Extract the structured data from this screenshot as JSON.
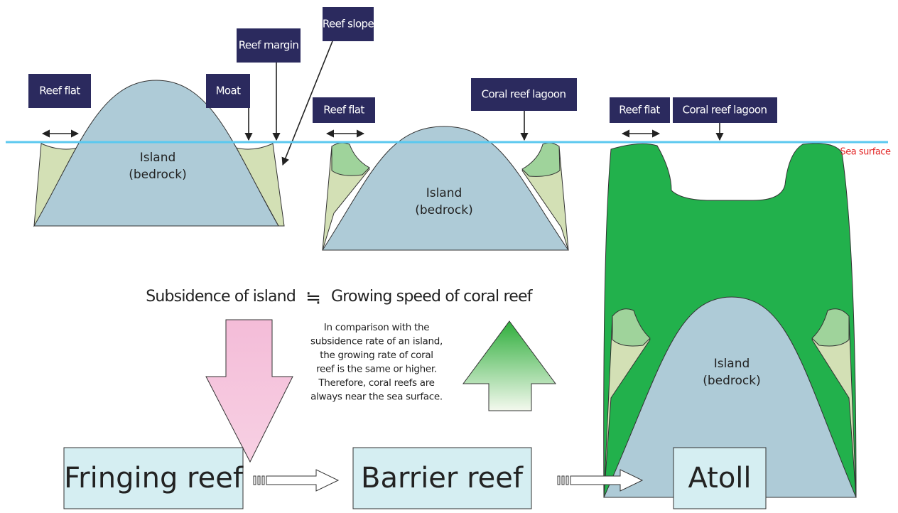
{
  "labels": [
    "Reef flat",
    "Moat",
    "Reef margin",
    "Reef slope",
    "Reef flat",
    "Coral reef lagoon",
    "Reef flat",
    "Coral reef lagoon"
  ],
  "sea_surface": "Sea surface",
  "islands": [
    [
      "Island",
      "(bedrock)"
    ],
    [
      "Island",
      "(bedrock)"
    ],
    [
      "Island",
      "(bedrock)"
    ]
  ],
  "equation": {
    "left": "Subsidence of island",
    "symbol": "≒",
    "right": "Growing speed of coral reef"
  },
  "note": [
    "In comparison with the",
    "subsidence rate of an island,",
    "the growing rate of coral",
    "reef is the same or higher.",
    "Therefore, coral reefs are",
    "always near the sea surface."
  ],
  "stages": [
    "Fringing reef",
    "Barrier reef",
    "Atoll"
  ]
}
